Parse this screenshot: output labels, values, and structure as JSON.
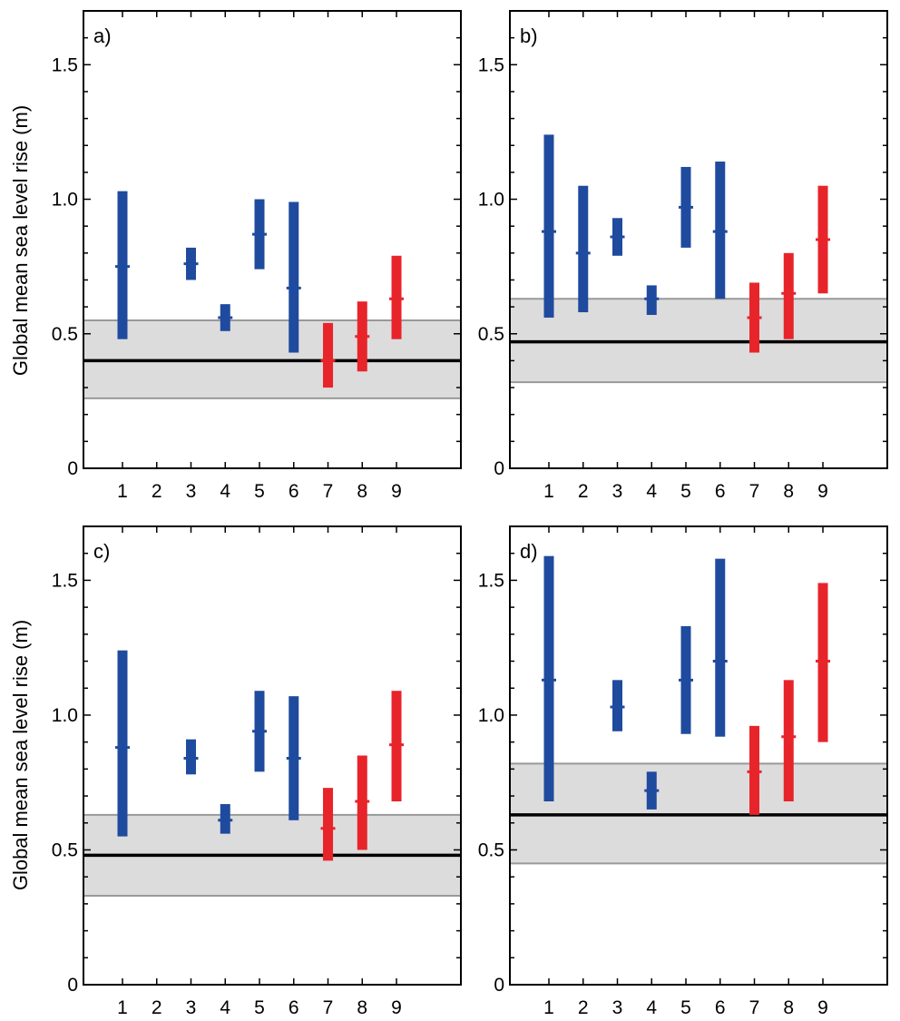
{
  "figure": {
    "ylabel": "Global mean sea level rise (m)"
  },
  "chart_data": [
    {
      "type": "bar",
      "panel_label": "a)",
      "ylim": [
        0,
        1.7
      ],
      "yticks": [
        0,
        0.5,
        1.0,
        1.5
      ],
      "ytick_labels": [
        "0",
        "0.5",
        "1.0",
        "1.5"
      ],
      "categories": [
        "1",
        "2",
        "3",
        "4",
        "5",
        "6",
        "7",
        "8",
        "9"
      ],
      "reference": {
        "median": 0.4,
        "low": 0.26,
        "high": 0.55
      },
      "ranges": [
        {
          "x": "1",
          "low": 0.48,
          "high": 1.03,
          "median": 0.75,
          "color": "#1f4b9e"
        },
        {
          "x": "3",
          "low": 0.7,
          "high": 0.82,
          "median": 0.76,
          "color": "#1f4b9e"
        },
        {
          "x": "4",
          "low": 0.51,
          "high": 0.61,
          "median": 0.56,
          "color": "#1f4b9e"
        },
        {
          "x": "5",
          "low": 0.74,
          "high": 1.0,
          "median": 0.87,
          "color": "#1f4b9e"
        },
        {
          "x": "6",
          "low": 0.43,
          "high": 0.99,
          "median": 0.67,
          "color": "#1f4b9e"
        },
        {
          "x": "7",
          "low": 0.3,
          "high": 0.54,
          "median": 0.4,
          "color": "#e8242b"
        },
        {
          "x": "8",
          "low": 0.36,
          "high": 0.62,
          "median": 0.49,
          "color": "#e8242b"
        },
        {
          "x": "9",
          "low": 0.48,
          "high": 0.79,
          "median": 0.63,
          "color": "#e8242b"
        }
      ]
    },
    {
      "type": "bar",
      "panel_label": "b)",
      "ylim": [
        0,
        1.7
      ],
      "yticks": [
        0,
        0.5,
        1.0,
        1.5
      ],
      "ytick_labels": [
        "0",
        "0.5",
        "1.0",
        "1.5"
      ],
      "categories": [
        "1",
        "2",
        "3",
        "4",
        "5",
        "6",
        "7",
        "8",
        "9"
      ],
      "reference": {
        "median": 0.47,
        "low": 0.32,
        "high": 0.63
      },
      "ranges": [
        {
          "x": "1",
          "low": 0.56,
          "high": 1.24,
          "median": 0.88,
          "color": "#1f4b9e"
        },
        {
          "x": "2",
          "low": 0.58,
          "high": 1.05,
          "median": 0.8,
          "color": "#1f4b9e"
        },
        {
          "x": "3",
          "low": 0.79,
          "high": 0.93,
          "median": 0.86,
          "color": "#1f4b9e"
        },
        {
          "x": "4",
          "low": 0.57,
          "high": 0.68,
          "median": 0.63,
          "color": "#1f4b9e"
        },
        {
          "x": "5",
          "low": 0.82,
          "high": 1.12,
          "median": 0.97,
          "color": "#1f4b9e"
        },
        {
          "x": "6",
          "low": 0.63,
          "high": 1.14,
          "median": 0.88,
          "color": "#1f4b9e"
        },
        {
          "x": "7",
          "low": 0.43,
          "high": 0.69,
          "median": 0.56,
          "color": "#e8242b"
        },
        {
          "x": "8",
          "low": 0.48,
          "high": 0.8,
          "median": 0.65,
          "color": "#e8242b"
        },
        {
          "x": "9",
          "low": 0.65,
          "high": 1.05,
          "median": 0.85,
          "color": "#e8242b"
        }
      ]
    },
    {
      "type": "bar",
      "panel_label": "c)",
      "ylim": [
        0,
        1.7
      ],
      "yticks": [
        0,
        0.5,
        1.0,
        1.5
      ],
      "ytick_labels": [
        "0",
        "0.5",
        "1.0",
        "1.5"
      ],
      "categories": [
        "1",
        "2",
        "3",
        "4",
        "5",
        "6",
        "7",
        "8",
        "9"
      ],
      "reference": {
        "median": 0.48,
        "low": 0.33,
        "high": 0.63
      },
      "ranges": [
        {
          "x": "1",
          "low": 0.55,
          "high": 1.24,
          "median": 0.88,
          "color": "#1f4b9e"
        },
        {
          "x": "3",
          "low": 0.78,
          "high": 0.91,
          "median": 0.84,
          "color": "#1f4b9e"
        },
        {
          "x": "4",
          "low": 0.56,
          "high": 0.67,
          "median": 0.61,
          "color": "#1f4b9e"
        },
        {
          "x": "5",
          "low": 0.79,
          "high": 1.09,
          "median": 0.94,
          "color": "#1f4b9e"
        },
        {
          "x": "6",
          "low": 0.61,
          "high": 1.07,
          "median": 0.84,
          "color": "#1f4b9e"
        },
        {
          "x": "7",
          "low": 0.46,
          "high": 0.73,
          "median": 0.58,
          "color": "#e8242b"
        },
        {
          "x": "8",
          "low": 0.5,
          "high": 0.85,
          "median": 0.68,
          "color": "#e8242b"
        },
        {
          "x": "9",
          "low": 0.68,
          "high": 1.09,
          "median": 0.89,
          "color": "#e8242b"
        }
      ]
    },
    {
      "type": "bar",
      "panel_label": "d)",
      "ylim": [
        0,
        1.7
      ],
      "yticks": [
        0,
        0.5,
        1.0,
        1.5
      ],
      "ytick_labels": [
        "0",
        "0.5",
        "1.0",
        "1.5"
      ],
      "categories": [
        "1",
        "2",
        "3",
        "4",
        "5",
        "6",
        "7",
        "8",
        "9"
      ],
      "reference": {
        "median": 0.63,
        "low": 0.45,
        "high": 0.82
      },
      "ranges": [
        {
          "x": "1",
          "low": 0.68,
          "high": 1.59,
          "median": 1.13,
          "color": "#1f4b9e"
        },
        {
          "x": "3",
          "low": 0.94,
          "high": 1.13,
          "median": 1.03,
          "color": "#1f4b9e"
        },
        {
          "x": "4",
          "low": 0.65,
          "high": 0.79,
          "median": 0.72,
          "color": "#1f4b9e"
        },
        {
          "x": "5",
          "low": 0.93,
          "high": 1.33,
          "median": 1.13,
          "color": "#1f4b9e"
        },
        {
          "x": "6",
          "low": 0.92,
          "high": 1.58,
          "median": 1.2,
          "color": "#1f4b9e"
        },
        {
          "x": "7",
          "low": 0.63,
          "high": 0.96,
          "median": 0.79,
          "color": "#e8242b"
        },
        {
          "x": "8",
          "low": 0.68,
          "high": 1.13,
          "median": 0.92,
          "color": "#e8242b"
        },
        {
          "x": "9",
          "low": 0.9,
          "high": 1.49,
          "median": 1.2,
          "color": "#e8242b"
        }
      ]
    }
  ]
}
